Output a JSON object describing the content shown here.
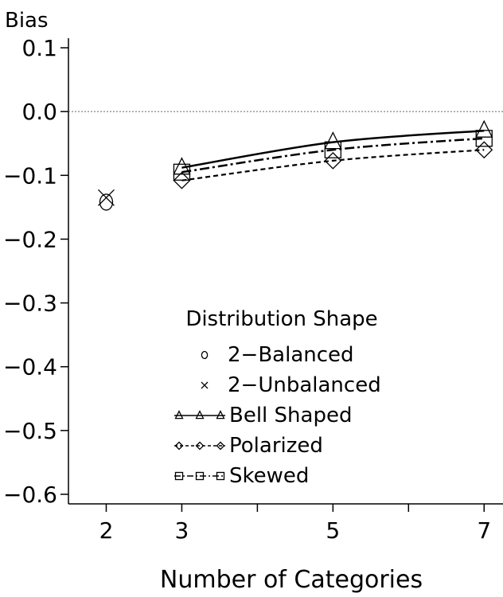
{
  "chart_data": {
    "type": "line",
    "title": "",
    "xlabel": "Number of Categories",
    "ylabel": "Bias",
    "xlim": [
      1.5,
      7.25
    ],
    "ylim": [
      -0.615,
      0.115
    ],
    "x_ticks": [
      2,
      3,
      4,
      5,
      6,
      7
    ],
    "x_tick_labels": [
      "2",
      "3",
      "",
      "5",
      "",
      "7"
    ],
    "y_ticks": [
      0.1,
      0.0,
      -0.1,
      -0.2,
      -0.3,
      -0.4,
      -0.5,
      -0.6
    ],
    "y_tick_labels": [
      "0.1",
      "0.0",
      "−0.1",
      "−0.2",
      "−0.3",
      "−0.4",
      "−0.5",
      "−0.6"
    ],
    "reference_line": {
      "y": 0.0,
      "style": "dotted"
    },
    "legend": {
      "title": "Distribution Shape",
      "placement": "lower-center"
    },
    "series": [
      {
        "name": "2−Balanced",
        "marker": "circle",
        "line": "none",
        "x": [
          2
        ],
        "y": [
          -0.142
        ]
      },
      {
        "name": "2−Unbalanced",
        "marker": "x",
        "line": "none",
        "x": [
          2
        ],
        "y": [
          -0.135
        ]
      },
      {
        "name": "Bell Shaped",
        "marker": "triangle",
        "line": "solid",
        "x": [
          3,
          5,
          7
        ],
        "y": [
          -0.088,
          -0.048,
          -0.03
        ]
      },
      {
        "name": "Polarized",
        "marker": "diamond",
        "line": "dashed",
        "x": [
          3,
          5,
          7
        ],
        "y": [
          -0.108,
          -0.077,
          -0.06
        ]
      },
      {
        "name": "Skewed",
        "marker": "square",
        "line": "dashdot",
        "x": [
          3,
          5,
          7
        ],
        "y": [
          -0.095,
          -0.06,
          -0.042
        ]
      }
    ]
  }
}
